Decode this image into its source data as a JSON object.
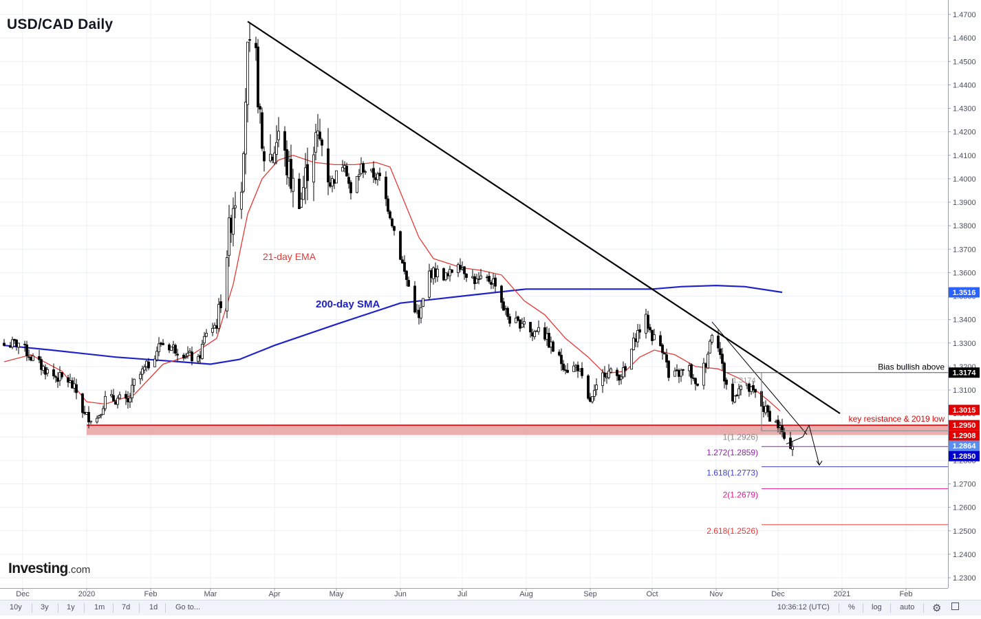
{
  "header": {
    "title": "USD/CAD Daily"
  },
  "brand": {
    "name": "Investing",
    "suffix": ".com"
  },
  "toolbar": {
    "ranges": [
      "10y",
      "3y",
      "1y",
      "1m",
      "7d",
      "1d"
    ],
    "goto_label": "Go to...",
    "time": "10:36:12 (UTC)",
    "percent_label": "%",
    "log_label": "log",
    "auto_label": "auto",
    "settings_icon": "gear-icon",
    "fullscreen_icon": "fullscreen-icon"
  },
  "colors": {
    "ema": "#e53935",
    "sma": "#1e22c8",
    "up_candle": "#ffffff",
    "down_candle": "#000000",
    "resistance_zone": "#e8a0a0",
    "resistance_line": "#e00000",
    "label_red": "#e00000",
    "label_blue": "#2962ff",
    "label_navy": "#0000cc",
    "label_black": "#000000"
  },
  "chart_data": {
    "type": "candlestick",
    "ylim": [
      1.223,
      1.473
    ],
    "y_ticks": [
      "1.4700",
      "1.4600",
      "1.4500",
      "1.4400",
      "1.4300",
      "1.4200",
      "1.4100",
      "1.4000",
      "1.3900",
      "1.3800",
      "1.3700",
      "1.3600",
      "1.3500",
      "1.3400",
      "1.3300",
      "1.3200",
      "1.3100",
      "1.3000",
      "1.2900",
      "1.2800",
      "1.2700",
      "1.2600",
      "1.2500",
      "1.2400",
      "1.2300"
    ],
    "x_ticks": [
      {
        "label": "Dec",
        "date": "2019-12-01"
      },
      {
        "label": "2020",
        "date": "2020-01-01"
      },
      {
        "label": "Feb",
        "date": "2020-02-01"
      },
      {
        "label": "Mar",
        "date": "2020-03-01"
      },
      {
        "label": "Apr",
        "date": "2020-04-01"
      },
      {
        "label": "May",
        "date": "2020-05-01"
      },
      {
        "label": "Jun",
        "date": "2020-06-01"
      },
      {
        "label": "Jul",
        "date": "2020-07-01"
      },
      {
        "label": "Aug",
        "date": "2020-08-01"
      },
      {
        "label": "Sep",
        "date": "2020-09-01"
      },
      {
        "label": "Oct",
        "date": "2020-10-01"
      },
      {
        "label": "Nov",
        "date": "2020-11-01"
      },
      {
        "label": "Dec",
        "date": "2020-12-01"
      },
      {
        "label": "2021",
        "date": "2021-01-01"
      },
      {
        "label": "Feb",
        "date": "2021-02-01"
      }
    ],
    "price_path": [
      [
        "2019-11-22",
        1.329
      ],
      [
        "2019-11-29",
        1.33
      ],
      [
        "2019-12-05",
        1.324
      ],
      [
        "2019-12-10",
        1.32
      ],
      [
        "2019-12-16",
        1.316
      ],
      [
        "2019-12-23",
        1.314
      ],
      [
        "2019-12-27",
        1.309
      ],
      [
        "2019-12-31",
        1.299
      ],
      [
        "2020-01-06",
        1.298
      ],
      [
        "2020-01-10",
        1.306
      ],
      [
        "2020-01-17",
        1.306
      ],
      [
        "2020-01-21",
        1.304
      ],
      [
        "2020-01-24",
        1.313
      ],
      [
        "2020-01-31",
        1.321
      ],
      [
        "2020-02-06",
        1.33
      ],
      [
        "2020-02-12",
        1.328
      ],
      [
        "2020-02-19",
        1.325
      ],
      [
        "2020-02-24",
        1.322
      ],
      [
        "2020-02-28",
        1.335
      ],
      [
        "2020-03-04",
        1.338
      ],
      [
        "2020-03-09",
        1.37
      ],
      [
        "2020-03-12",
        1.39
      ],
      [
        "2020-03-16",
        1.4
      ],
      [
        "2020-03-19",
        1.453
      ],
      [
        "2020-03-23",
        1.45
      ],
      [
        "2020-03-26",
        1.41
      ],
      [
        "2020-03-31",
        1.41
      ],
      [
        "2020-04-03",
        1.42
      ],
      [
        "2020-04-07",
        1.405
      ],
      [
        "2020-04-10",
        1.397
      ],
      [
        "2020-04-14",
        1.392
      ],
      [
        "2020-04-17",
        1.405
      ],
      [
        "2020-04-21",
        1.417
      ],
      [
        "2020-04-24",
        1.415
      ],
      [
        "2020-04-28",
        1.398
      ],
      [
        "2020-04-30",
        1.4
      ],
      [
        "2020-05-05",
        1.408
      ],
      [
        "2020-05-08",
        1.393
      ],
      [
        "2020-05-13",
        1.405
      ],
      [
        "2020-05-18",
        1.402
      ],
      [
        "2020-05-22",
        1.4
      ],
      [
        "2020-05-27",
        1.385
      ],
      [
        "2020-05-29",
        1.378
      ],
      [
        "2020-06-03",
        1.36
      ],
      [
        "2020-06-08",
        1.345
      ],
      [
        "2020-06-10",
        1.34
      ],
      [
        "2020-06-15",
        1.36
      ],
      [
        "2020-06-19",
        1.36
      ],
      [
        "2020-06-24",
        1.358
      ],
      [
        "2020-06-29",
        1.365
      ],
      [
        "2020-07-03",
        1.36
      ],
      [
        "2020-07-08",
        1.356
      ],
      [
        "2020-07-14",
        1.357
      ],
      [
        "2020-07-17",
        1.356
      ],
      [
        "2020-07-21",
        1.345
      ],
      [
        "2020-07-24",
        1.34
      ],
      [
        "2020-07-28",
        1.338
      ],
      [
        "2020-07-31",
        1.34
      ],
      [
        "2020-08-04",
        1.333
      ],
      [
        "2020-08-07",
        1.338
      ],
      [
        "2020-08-12",
        1.33
      ],
      [
        "2020-08-17",
        1.323
      ],
      [
        "2020-08-21",
        1.319
      ],
      [
        "2020-08-26",
        1.32
      ],
      [
        "2020-08-31",
        1.305
      ],
      [
        "2020-09-02",
        1.306
      ],
      [
        "2020-09-08",
        1.318
      ],
      [
        "2020-09-14",
        1.316
      ],
      [
        "2020-09-18",
        1.318
      ],
      [
        "2020-09-23",
        1.333
      ],
      [
        "2020-09-28",
        1.34
      ],
      [
        "2020-10-01",
        1.333
      ],
      [
        "2020-10-07",
        1.327
      ],
      [
        "2020-10-09",
        1.315
      ],
      [
        "2020-10-14",
        1.317
      ],
      [
        "2020-10-19",
        1.319
      ],
      [
        "2020-10-22",
        1.311
      ],
      [
        "2020-10-27",
        1.322
      ],
      [
        "2020-10-30",
        1.335
      ],
      [
        "2020-11-02",
        1.33
      ],
      [
        "2020-11-05",
        1.315
      ],
      [
        "2020-11-09",
        1.305
      ],
      [
        "2020-11-12",
        1.312
      ],
      [
        "2020-11-17",
        1.31
      ],
      [
        "2020-11-20",
        1.308
      ],
      [
        "2020-11-24",
        1.302
      ],
      [
        "2020-11-27",
        1.299
      ],
      [
        "2020-12-01",
        1.295
      ],
      [
        "2020-12-03",
        1.292
      ],
      [
        "2020-12-04",
        1.287
      ],
      [
        "2020-12-07",
        1.287
      ],
      [
        "2020-12-08",
        1.287
      ]
    ],
    "ema21": [
      [
        "2019-11-22",
        1.322
      ],
      [
        "2019-12-05",
        1.325
      ],
      [
        "2019-12-20",
        1.318
      ],
      [
        "2020-01-01",
        1.305
      ],
      [
        "2020-01-10",
        1.304
      ],
      [
        "2020-01-24",
        1.308
      ],
      [
        "2020-02-07",
        1.321
      ],
      [
        "2020-02-21",
        1.325
      ],
      [
        "2020-03-04",
        1.332
      ],
      [
        "2020-03-12",
        1.355
      ],
      [
        "2020-03-19",
        1.385
      ],
      [
        "2020-03-26",
        1.4
      ],
      [
        "2020-04-03",
        1.408
      ],
      [
        "2020-04-10",
        1.41
      ],
      [
        "2020-04-20",
        1.407
      ],
      [
        "2020-04-30",
        1.406
      ],
      [
        "2020-05-10",
        1.406
      ],
      [
        "2020-05-20",
        1.407
      ],
      [
        "2020-05-27",
        1.405
      ],
      [
        "2020-06-03",
        1.39
      ],
      [
        "2020-06-10",
        1.375
      ],
      [
        "2020-06-17",
        1.366
      ],
      [
        "2020-06-24",
        1.364
      ],
      [
        "2020-07-01",
        1.362
      ],
      [
        "2020-07-10",
        1.361
      ],
      [
        "2020-07-20",
        1.359
      ],
      [
        "2020-07-31",
        1.348
      ],
      [
        "2020-08-10",
        1.342
      ],
      [
        "2020-08-20",
        1.332
      ],
      [
        "2020-08-31",
        1.324
      ],
      [
        "2020-09-08",
        1.317
      ],
      [
        "2020-09-18",
        1.318
      ],
      [
        "2020-09-25",
        1.324
      ],
      [
        "2020-10-02",
        1.327
      ],
      [
        "2020-10-12",
        1.325
      ],
      [
        "2020-10-22",
        1.32
      ],
      [
        "2020-11-02",
        1.319
      ],
      [
        "2020-11-12",
        1.315
      ],
      [
        "2020-11-20",
        1.31
      ],
      [
        "2020-11-27",
        1.305
      ],
      [
        "2020-12-02",
        1.301
      ]
    ],
    "sma200": [
      [
        "2019-11-22",
        1.329
      ],
      [
        "2019-12-15",
        1.327
      ],
      [
        "2020-01-15",
        1.324
      ],
      [
        "2020-02-15",
        1.322
      ],
      [
        "2020-03-01",
        1.321
      ],
      [
        "2020-03-15",
        1.323
      ],
      [
        "2020-04-01",
        1.329
      ],
      [
        "2020-05-01",
        1.338
      ],
      [
        "2020-06-01",
        1.347
      ],
      [
        "2020-07-01",
        1.35
      ],
      [
        "2020-08-01",
        1.353
      ],
      [
        "2020-09-01",
        1.353
      ],
      [
        "2020-10-01",
        1.353
      ],
      [
        "2020-10-15",
        1.354
      ],
      [
        "2020-11-01",
        1.3545
      ],
      [
        "2020-11-15",
        1.354
      ],
      [
        "2020-12-03",
        1.3516
      ]
    ],
    "trendlines": [
      {
        "from": [
          "2020-03-19",
          1.467
        ],
        "to": [
          "2020-12-31",
          1.3
        ]
      },
      {
        "from": [
          "2020-10-30",
          1.339
        ],
        "to": [
          "2020-12-15",
          1.291
        ]
      }
    ],
    "resistance_zone": {
      "from": "2020-01-01",
      "top": 1.295,
      "bottom": 1.2908,
      "label": "key resistance & 2019 low"
    },
    "bias_line": {
      "from": "2020-11-06",
      "value": 1.3174,
      "label": "Bias bullish above"
    },
    "fib_ref_label": "1.3174",
    "fib_levels": [
      {
        "label": "1(1.2926)",
        "value": 1.2926,
        "color": "#888888"
      },
      {
        "label": "1.272(1.2859)",
        "value": 1.2859,
        "color": "#8e24aa"
      },
      {
        "label": "1.618(1.2773)",
        "value": 1.2773,
        "color": "#3f3fbf"
      },
      {
        "label": "2(1.2679)",
        "value": 1.2679,
        "color": "#d81b8c"
      },
      {
        "label": "2.618(1.2526)",
        "value": 1.2526,
        "color": "#e53935"
      }
    ],
    "projection": [
      [
        "2020-12-05",
        1.287
      ],
      [
        "2020-12-13",
        1.29
      ],
      [
        "2020-12-16",
        1.295
      ],
      [
        "2020-12-21",
        1.278
      ]
    ],
    "price_labels": [
      {
        "text": "1.3516",
        "value": 1.3516,
        "bg": "#2962ff",
        "fg": "#ffffff"
      },
      {
        "text": "1.3174",
        "value": 1.3174,
        "bg": "#000000",
        "fg": "#ffffff"
      },
      {
        "text": "1.3015",
        "value": 1.3015,
        "bg": "#e00000",
        "fg": "#ffffff"
      },
      {
        "text": "1.2950",
        "value": 1.295,
        "bg": "#e00000",
        "fg": "#ffffff"
      },
      {
        "text": "1.2908",
        "value": 1.2908,
        "bg": "#e00000",
        "fg": "#ffffff"
      },
      {
        "text": "1.2864",
        "value": 1.2864,
        "bg": "#5b8def",
        "fg": "#ffffff"
      },
      {
        "text": "1.2850",
        "value": 1.285,
        "bg": "#0000cc",
        "fg": "#ffffff"
      }
    ],
    "annotations": {
      "ema_label": "21-day EMA",
      "sma_label": "200-day SMA"
    }
  }
}
